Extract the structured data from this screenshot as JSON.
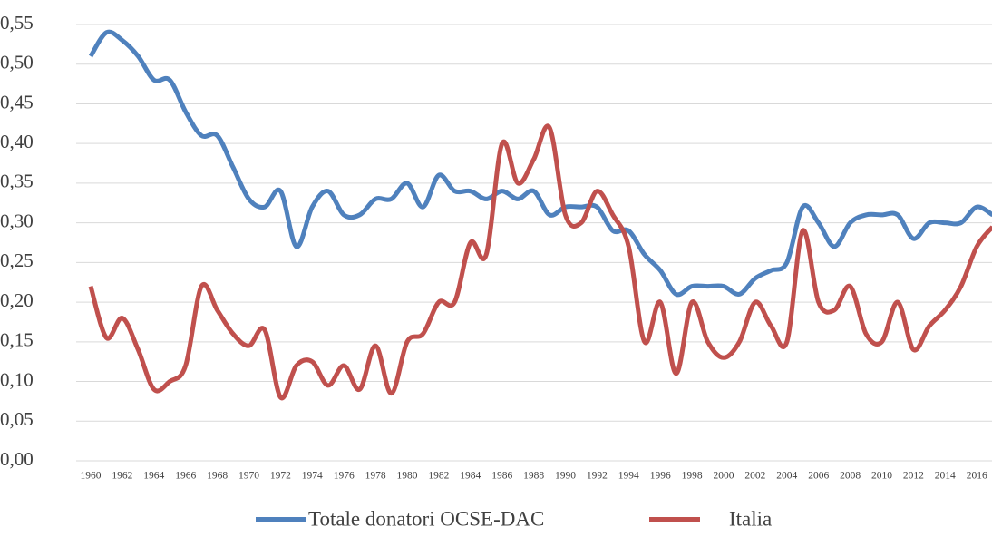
{
  "chart_data": {
    "type": "line",
    "categories": [
      "1960",
      null,
      "1962",
      null,
      "1964",
      null,
      "1966",
      null,
      "1968",
      null,
      "1970",
      null,
      "1972",
      null,
      "1974",
      null,
      "1976",
      null,
      "1978",
      null,
      "1980",
      null,
      "1982",
      null,
      "1984",
      null,
      "1986",
      null,
      "1988",
      null,
      "1990",
      null,
      "1992",
      null,
      "1994",
      null,
      "1996",
      null,
      "1998",
      null,
      "2000",
      null,
      "2002",
      null,
      "2004",
      null,
      "2006",
      null,
      "2008",
      null,
      "2010",
      null,
      "2012",
      null,
      "2014",
      null,
      "2016",
      null
    ],
    "series": [
      {
        "name": "Totale donatori OCSE-DAC",
        "color": "#4f81bd",
        "values": [
          0.51,
          0.54,
          0.53,
          0.51,
          0.48,
          0.48,
          0.44,
          0.41,
          0.41,
          0.37,
          0.33,
          0.32,
          0.34,
          0.27,
          0.32,
          0.34,
          0.31,
          0.31,
          0.33,
          0.33,
          0.35,
          0.32,
          0.36,
          0.34,
          0.34,
          0.33,
          0.34,
          0.33,
          0.34,
          0.31,
          0.32,
          0.32,
          0.32,
          0.29,
          0.29,
          0.26,
          0.24,
          0.21,
          0.22,
          0.22,
          0.22,
          0.21,
          0.23,
          0.24,
          0.25,
          0.32,
          0.3,
          0.27,
          0.3,
          0.31,
          0.31,
          0.31,
          0.28,
          0.3,
          0.3,
          0.3,
          0.32,
          0.31
        ]
      },
      {
        "name": "Italia",
        "color": "#c0504d",
        "values": [
          0.22,
          0.155,
          0.18,
          0.14,
          0.09,
          0.1,
          0.12,
          0.22,
          0.19,
          0.16,
          0.145,
          0.165,
          0.08,
          0.12,
          0.125,
          0.095,
          0.12,
          0.09,
          0.145,
          0.085,
          0.15,
          0.16,
          0.2,
          0.2,
          0.275,
          0.26,
          0.4,
          0.35,
          0.38,
          0.42,
          0.31,
          0.3,
          0.34,
          0.31,
          0.27,
          0.15,
          0.2,
          0.11,
          0.2,
          0.15,
          0.13,
          0.15,
          0.2,
          0.17,
          0.15,
          0.29,
          0.2,
          0.19,
          0.22,
          0.16,
          0.15,
          0.2,
          0.14,
          0.17,
          0.19,
          0.22,
          0.27,
          0.295
        ]
      }
    ],
    "ylim": [
      0,
      0.55
    ],
    "yticks": [
      {
        "value": 0,
        "label": "0,00"
      },
      {
        "value": 0.05,
        "label": "0,05"
      },
      {
        "value": 0.1,
        "label": "0,10"
      },
      {
        "value": 0.15,
        "label": "0,15"
      },
      {
        "value": 0.2,
        "label": "0,20"
      },
      {
        "value": 0.25,
        "label": "0,25"
      },
      {
        "value": 0.3,
        "label": "0,30"
      },
      {
        "value": 0.35,
        "label": "0,35"
      },
      {
        "value": 0.4,
        "label": "0,40"
      },
      {
        "value": 0.45,
        "label": "0,45"
      },
      {
        "value": 0.5,
        "label": "0,50"
      },
      {
        "value": 0.55,
        "label": "0,55"
      }
    ],
    "grid": true
  }
}
